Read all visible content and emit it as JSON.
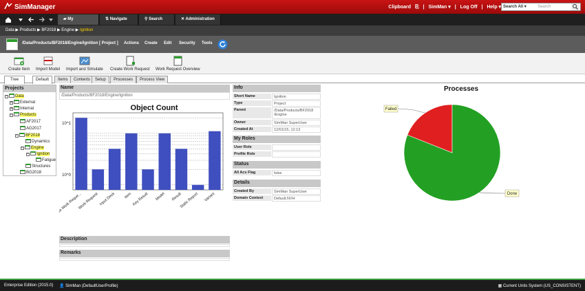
{
  "app": {
    "name": "SimManager",
    "header_links": [
      "Clipboard",
      "|",
      "SimMan ▾",
      "|",
      "Log Off",
      "|",
      "Help ▾",
      "|"
    ],
    "search_scope": "Search All ▾",
    "search_placeholder": "Search"
  },
  "nav": {
    "tabs": [
      "My Workspace",
      "Navigate",
      "Search",
      "Administration"
    ]
  },
  "breadcrumb": {
    "items": [
      "Data",
      "▶",
      "Products",
      "▶",
      "BF2018",
      "▶",
      "Engine",
      "▶"
    ],
    "current": "Ignition"
  },
  "path": {
    "title": "/Data/Products/BF2018/Engine/Ignition [ Project ]",
    "menus": [
      "Actions",
      "Create",
      "Edit",
      "Security",
      "Tools"
    ]
  },
  "toolbar": {
    "buttons": [
      "Create Item",
      "Import Model",
      "Import and Simulate",
      "Create Work Request",
      "Work Request Overview"
    ]
  },
  "tabs": [
    "Tree",
    "Default",
    "Items",
    "Contents",
    "Setup",
    "Processes",
    "Process View"
  ],
  "projects": {
    "title": "Projects",
    "nodes": [
      "Data",
      "External",
      "Internal",
      "Products",
      "AF2017",
      "AG2017",
      "BF2018",
      "Dynamics",
      "Engine",
      "Ignition",
      "Fatigue",
      "Structures",
      "BG2018"
    ]
  },
  "name_section": {
    "label": "Name",
    "value": "/Data/Products/BF2018/Engine/Ignition"
  },
  "object_count_chart": {
    "title": "Object Count",
    "y_ticks": [
      "10^1",
      "10^0"
    ]
  },
  "chart_data": [
    {
      "type": "bar",
      "title": "Object Count",
      "yscale": "log",
      "categories": [
        "Enterprise Work Reque...",
        "Work Request",
        "Input Deck",
        "Item",
        "Key Result",
        "Model",
        "Result",
        "Static Report",
        "Variant"
      ],
      "values": [
        20,
        2,
        5,
        10,
        2,
        10,
        5,
        1,
        11
      ],
      "ylim": [
        0.8,
        25
      ],
      "colors": [
        "#3f4fbf"
      ]
    },
    {
      "type": "pie",
      "title": "Processes",
      "labels": [
        "Failed",
        "Done"
      ],
      "values": [
        19,
        81
      ],
      "colors": [
        "#e02020",
        "#23a023"
      ]
    }
  ],
  "description": {
    "label": "Description"
  },
  "remarks": {
    "label": "Remarks"
  },
  "info": {
    "title": "Info",
    "rows": [
      {
        "k": "Short Name",
        "v": "Ignition"
      },
      {
        "k": "Type",
        "v": "Project"
      },
      {
        "k": "Parent",
        "v": "/Data/Products/BF2018 /Engine"
      },
      {
        "k": "Owner",
        "v": "SimMan SuperUser"
      },
      {
        "k": "Created At",
        "v": "12/01/15, 12:13"
      }
    ]
  },
  "my_roles": {
    "title": "My Roles",
    "rows": [
      {
        "k": "User Role",
        "v": ""
      },
      {
        "k": "Profile Role",
        "v": ""
      }
    ]
  },
  "status": {
    "title": "Status",
    "rows": [
      {
        "k": "All Acs Flag",
        "v": "false"
      }
    ]
  },
  "details": {
    "title": "Details",
    "rows": [
      {
        "k": "Created By",
        "v": "SimMan SuperUser"
      },
      {
        "k": "Domain Context",
        "v": "Default.NVH"
      }
    ]
  },
  "processes_chart": {
    "title": "Processes"
  },
  "statusbar": {
    "edition": "Enterprise Edition (2015.0)",
    "user": "SimMan (DefaultUserProfile)",
    "units": "Current Units System (US_CONSISTENT)"
  }
}
